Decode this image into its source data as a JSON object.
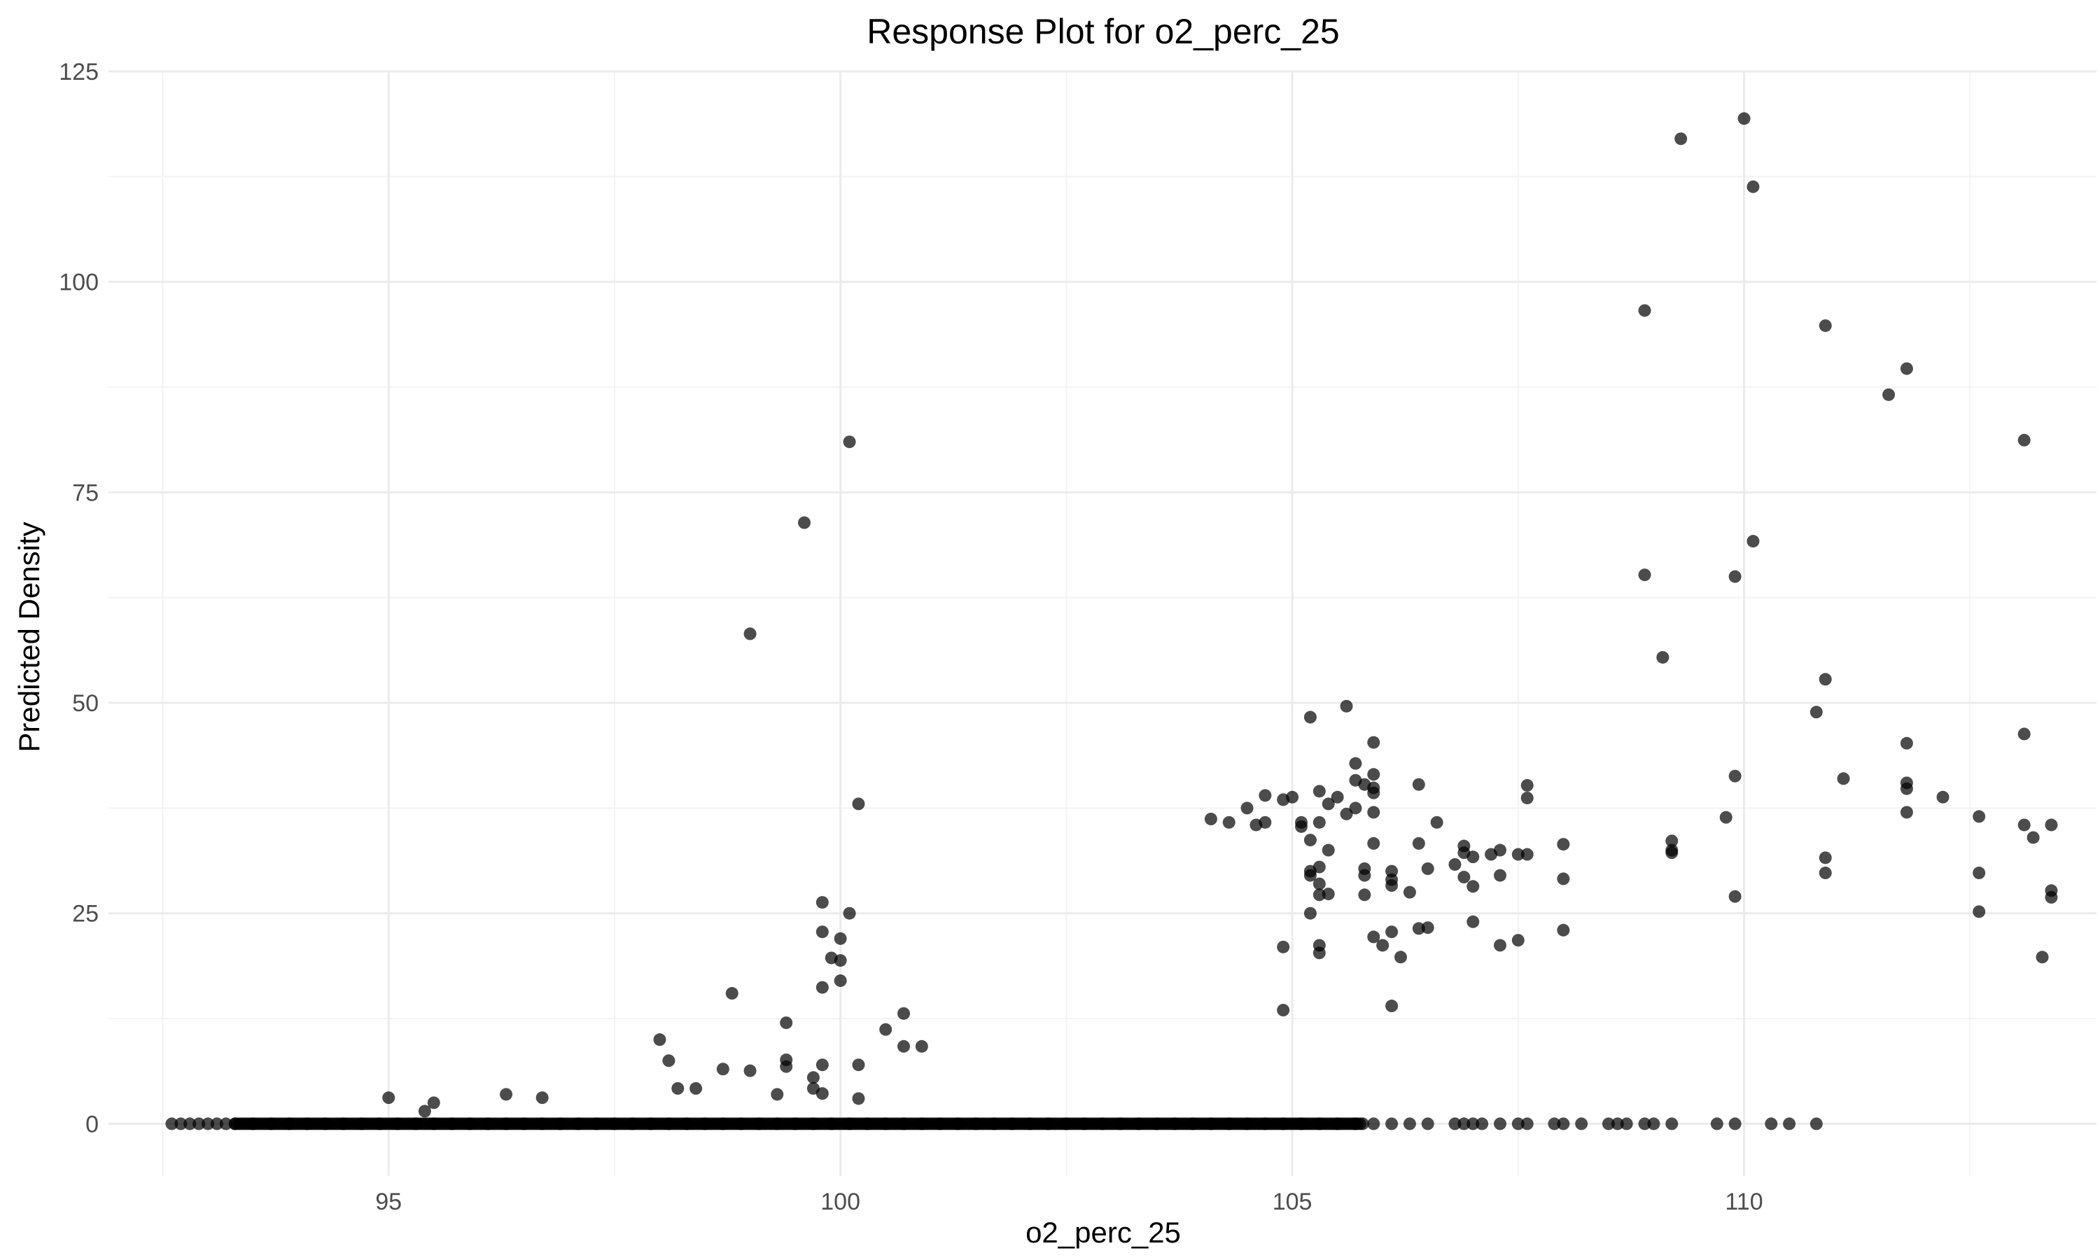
{
  "chart_data": {
    "type": "scatter",
    "title": "Response Plot for o2_perc_25",
    "xlabel": "o2_perc_25",
    "ylabel": "Predicted Density",
    "xlim": [
      91.9,
      113.9
    ],
    "ylim": [
      -6.2,
      125.0
    ],
    "x_ticks": [
      95,
      100,
      105,
      110
    ],
    "y_ticks": [
      0,
      25,
      50,
      75,
      100,
      125
    ],
    "x_tick_labels": [
      "95",
      "100",
      "105",
      "110"
    ],
    "y_tick_labels": [
      "0",
      "25",
      "50",
      "75",
      "100",
      "125"
    ],
    "grid": true,
    "legend": "none",
    "point_color": "#000000",
    "points": [
      [
        92.6,
        0
      ],
      [
        92.7,
        0
      ],
      [
        92.8,
        0
      ],
      [
        92.9,
        0
      ],
      [
        93.0,
        0
      ],
      [
        93.1,
        0
      ],
      [
        93.2,
        0
      ],
      [
        93.3,
        0
      ],
      [
        93.5,
        0
      ],
      [
        93.7,
        0
      ],
      [
        93.9,
        0
      ],
      [
        94.1,
        0
      ],
      [
        94.3,
        0
      ],
      [
        94.5,
        0
      ],
      [
        94.7,
        0
      ],
      [
        94.9,
        0
      ],
      [
        95.1,
        0
      ],
      [
        95.3,
        0
      ],
      [
        95.5,
        0
      ],
      [
        95.7,
        0
      ],
      [
        95.9,
        0
      ],
      [
        96.1,
        0
      ],
      [
        96.3,
        0
      ],
      [
        96.5,
        0
      ],
      [
        96.7,
        0
      ],
      [
        96.9,
        0
      ],
      [
        97.1,
        0
      ],
      [
        97.3,
        0
      ],
      [
        97.5,
        0
      ],
      [
        97.7,
        0
      ],
      [
        97.9,
        0
      ],
      [
        98.1,
        0
      ],
      [
        98.3,
        0
      ],
      [
        98.5,
        0
      ],
      [
        98.7,
        0
      ],
      [
        98.9,
        0
      ],
      [
        99.1,
        0
      ],
      [
        99.3,
        0
      ],
      [
        99.5,
        0
      ],
      [
        99.7,
        0
      ],
      [
        99.9,
        0
      ],
      [
        100.1,
        0
      ],
      [
        100.3,
        0
      ],
      [
        100.5,
        0
      ],
      [
        100.7,
        0
      ],
      [
        100.9,
        0
      ],
      [
        101.1,
        0
      ],
      [
        101.3,
        0
      ],
      [
        101.5,
        0
      ],
      [
        101.7,
        0
      ],
      [
        101.9,
        0
      ],
      [
        102.1,
        0
      ],
      [
        102.3,
        0
      ],
      [
        102.5,
        0
      ],
      [
        102.7,
        0
      ],
      [
        102.9,
        0
      ],
      [
        103.1,
        0
      ],
      [
        103.3,
        0
      ],
      [
        103.5,
        0
      ],
      [
        103.7,
        0
      ],
      [
        103.9,
        0
      ],
      [
        104.1,
        0
      ],
      [
        104.3,
        0
      ],
      [
        104.5,
        0
      ],
      [
        104.7,
        0
      ],
      [
        104.9,
        0
      ],
      [
        105.1,
        0
      ],
      [
        105.3,
        0
      ],
      [
        105.5,
        0
      ],
      [
        105.7,
        0
      ],
      [
        105.9,
        0
      ],
      [
        106.1,
        0
      ],
      [
        106.3,
        0
      ],
      [
        106.5,
        0
      ],
      [
        106.8,
        0
      ],
      [
        106.9,
        0
      ],
      [
        107.0,
        0
      ],
      [
        107.1,
        0
      ],
      [
        107.3,
        0
      ],
      [
        107.5,
        0
      ],
      [
        107.6,
        0
      ],
      [
        107.9,
        0
      ],
      [
        108.0,
        0
      ],
      [
        108.2,
        0
      ],
      [
        108.5,
        0
      ],
      [
        108.6,
        0
      ],
      [
        108.7,
        0
      ],
      [
        108.9,
        0
      ],
      [
        109.0,
        0
      ],
      [
        109.2,
        0
      ],
      [
        109.7,
        0
      ],
      [
        109.9,
        0
      ],
      [
        110.3,
        0
      ],
      [
        110.5,
        0
      ],
      [
        110.8,
        0
      ],
      [
        95.0,
        3.1
      ],
      [
        95.4,
        1.5
      ],
      [
        95.5,
        2.5
      ],
      [
        96.3,
        3.5
      ],
      [
        96.7,
        3.1
      ],
      [
        98.0,
        10.0
      ],
      [
        98.1,
        7.5
      ],
      [
        98.2,
        4.2
      ],
      [
        98.4,
        4.2
      ],
      [
        98.7,
        6.5
      ],
      [
        98.8,
        15.5
      ],
      [
        99.0,
        6.3
      ],
      [
        99.3,
        3.5
      ],
      [
        99.4,
        7.6
      ],
      [
        99.4,
        12.0
      ],
      [
        99.4,
        6.8
      ],
      [
        99.7,
        5.5
      ],
      [
        99.7,
        4.2
      ],
      [
        99.8,
        3.6
      ],
      [
        99.8,
        16.2
      ],
      [
        99.8,
        26.3
      ],
      [
        99.8,
        22.8
      ],
      [
        99.8,
        7.0
      ],
      [
        99.9,
        19.7
      ],
      [
        100.0,
        19.4
      ],
      [
        100.0,
        22.0
      ],
      [
        100.0,
        17.0
      ],
      [
        100.1,
        25.0
      ],
      [
        100.2,
        38.0
      ],
      [
        100.2,
        7.0
      ],
      [
        100.2,
        3.0
      ],
      [
        100.5,
        11.2
      ],
      [
        100.7,
        13.1
      ],
      [
        100.7,
        9.2
      ],
      [
        100.9,
        9.2
      ],
      [
        99.0,
        58.2
      ],
      [
        99.6,
        71.4
      ],
      [
        100.1,
        81.0
      ],
      [
        104.1,
        36.2
      ],
      [
        104.3,
        35.8
      ],
      [
        104.5,
        37.5
      ],
      [
        104.6,
        35.5
      ],
      [
        104.7,
        39.0
      ],
      [
        104.7,
        35.8
      ],
      [
        104.9,
        38.5
      ],
      [
        104.9,
        21.0
      ],
      [
        104.9,
        13.5
      ],
      [
        105.0,
        38.8
      ],
      [
        105.1,
        35.3
      ],
      [
        105.1,
        35.8
      ],
      [
        105.2,
        30.0
      ],
      [
        105.2,
        48.3
      ],
      [
        105.2,
        33.7
      ],
      [
        105.2,
        25.0
      ],
      [
        105.2,
        29.5
      ],
      [
        105.3,
        27.2
      ],
      [
        105.3,
        28.5
      ],
      [
        105.3,
        30.5
      ],
      [
        105.3,
        21.2
      ],
      [
        105.3,
        20.3
      ],
      [
        105.3,
        35.8
      ],
      [
        105.3,
        39.5
      ],
      [
        105.4,
        32.5
      ],
      [
        105.4,
        27.3
      ],
      [
        105.4,
        38.0
      ],
      [
        105.5,
        38.8
      ],
      [
        105.6,
        36.8
      ],
      [
        105.6,
        49.6
      ],
      [
        105.7,
        40.8
      ],
      [
        105.7,
        42.8
      ],
      [
        105.7,
        37.5
      ],
      [
        105.8,
        40.3
      ],
      [
        105.8,
        30.3
      ],
      [
        105.8,
        27.2
      ],
      [
        105.8,
        29.5
      ],
      [
        105.9,
        45.3
      ],
      [
        105.9,
        41.5
      ],
      [
        105.9,
        39.9
      ],
      [
        105.9,
        39.3
      ],
      [
        105.9,
        37.0
      ],
      [
        105.9,
        33.3
      ],
      [
        105.9,
        22.2
      ],
      [
        106.0,
        21.2
      ],
      [
        106.1,
        30.0
      ],
      [
        106.1,
        28.3
      ],
      [
        106.1,
        29.0
      ],
      [
        106.1,
        22.8
      ],
      [
        106.1,
        14.0
      ],
      [
        106.2,
        19.8
      ],
      [
        106.3,
        27.5
      ],
      [
        106.4,
        33.3
      ],
      [
        106.4,
        23.2
      ],
      [
        106.4,
        40.3
      ],
      [
        106.5,
        30.3
      ],
      [
        106.5,
        23.3
      ],
      [
        106.6,
        35.8
      ],
      [
        106.8,
        30.8
      ],
      [
        106.9,
        33.0
      ],
      [
        106.9,
        32.2
      ],
      [
        106.9,
        29.3
      ],
      [
        107.0,
        31.7
      ],
      [
        107.0,
        28.2
      ],
      [
        107.0,
        24.0
      ],
      [
        107.2,
        32.0
      ],
      [
        107.3,
        29.5
      ],
      [
        107.3,
        32.5
      ],
      [
        107.3,
        21.2
      ],
      [
        107.5,
        32.0
      ],
      [
        107.5,
        21.8
      ],
      [
        107.6,
        32.0
      ],
      [
        107.6,
        38.7
      ],
      [
        107.6,
        40.2
      ],
      [
        108.0,
        33.2
      ],
      [
        108.0,
        29.1
      ],
      [
        108.0,
        23.0
      ],
      [
        108.9,
        96.6
      ],
      [
        108.9,
        65.2
      ],
      [
        109.1,
        55.4
      ],
      [
        109.2,
        33.6
      ],
      [
        109.2,
        32.5
      ],
      [
        109.2,
        32.2
      ],
      [
        109.3,
        117.0
      ],
      [
        109.8,
        36.4
      ],
      [
        109.9,
        41.3
      ],
      [
        109.9,
        27.0
      ],
      [
        109.9,
        65.0
      ],
      [
        110.0,
        119.4
      ],
      [
        110.1,
        111.3
      ],
      [
        110.1,
        69.2
      ],
      [
        110.8,
        48.9
      ],
      [
        110.9,
        52.8
      ],
      [
        110.9,
        31.6
      ],
      [
        110.9,
        29.8
      ],
      [
        110.9,
        94.8
      ],
      [
        111.1,
        41.0
      ],
      [
        111.6,
        86.6
      ],
      [
        111.8,
        89.7
      ],
      [
        111.8,
        45.2
      ],
      [
        111.8,
        39.8
      ],
      [
        111.8,
        37.0
      ],
      [
        111.8,
        40.5
      ],
      [
        112.2,
        38.8
      ],
      [
        112.6,
        36.5
      ],
      [
        112.6,
        29.8
      ],
      [
        112.6,
        25.2
      ],
      [
        113.1,
        81.2
      ],
      [
        113.1,
        46.3
      ],
      [
        113.1,
        35.5
      ],
      [
        113.2,
        34.0
      ],
      [
        113.3,
        19.8
      ],
      [
        113.4,
        35.5
      ],
      [
        113.4,
        27.7
      ],
      [
        113.4,
        26.9
      ]
    ]
  }
}
